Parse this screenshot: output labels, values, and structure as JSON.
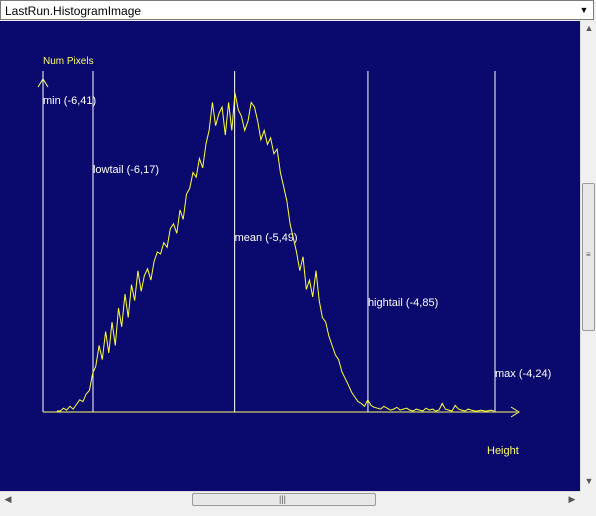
{
  "dropdown": {
    "value": "LastRun.HistogramImage",
    "arrow_icon": "triangle-down"
  },
  "colors": {
    "background": "#0a0a6e",
    "axis": "#ffff66",
    "marker": "#ffffff",
    "curve": "#ffff33"
  },
  "chart_data": {
    "type": "line",
    "ylabel": "Num Pixels",
    "xlabel": "Height",
    "xlim": [
      -6.41,
      -4.24
    ],
    "grid": false,
    "legend": "none",
    "markers": [
      {
        "label": "min (-6,41)",
        "x": -6.41
      },
      {
        "label": "lowtail (-6,17)",
        "x": -6.17
      },
      {
        "label": "mean (-5,49)",
        "x": -5.49
      },
      {
        "label": "hightail (-4,85)",
        "x": -4.85
      },
      {
        "label": "max (-4,24)",
        "x": -4.24
      }
    ],
    "series": [
      {
        "values": [
          0,
          0,
          3,
          1,
          5,
          2,
          7,
          12,
          10,
          18,
          22,
          40,
          48,
          70,
          55,
          85,
          62,
          95,
          70,
          110,
          90,
          125,
          100,
          135,
          118,
          150,
          128,
          145,
          152,
          140,
          160,
          170,
          168,
          180,
          175,
          195,
          200,
          190,
          215,
          205,
          232,
          238,
          255,
          250,
          270,
          260,
          285,
          300,
          330,
          305,
          318,
          325,
          295,
          330,
          300,
          340,
          322,
          315,
          300,
          310,
          330,
          325,
          310,
          290,
          300,
          285,
          292,
          275,
          280,
          255,
          240,
          225,
          200,
          185,
          170,
          150,
          165,
          130,
          140,
          122,
          150,
          118,
          100,
          95,
          80,
          70,
          60,
          55,
          42,
          35,
          28,
          20,
          15,
          10,
          8,
          5,
          12,
          6,
          4,
          3,
          2,
          5,
          3,
          1,
          2,
          4,
          1,
          2,
          3,
          1,
          0,
          2,
          1,
          0,
          3,
          1,
          2,
          0,
          1,
          8,
          2,
          1,
          0,
          6,
          2,
          1,
          0,
          2,
          1,
          0,
          0,
          1,
          0,
          0,
          1,
          0
        ]
      }
    ]
  },
  "scrollbars": {
    "vertical": "vertical-scrollbar",
    "horizontal": "horizontal-scrollbar"
  }
}
